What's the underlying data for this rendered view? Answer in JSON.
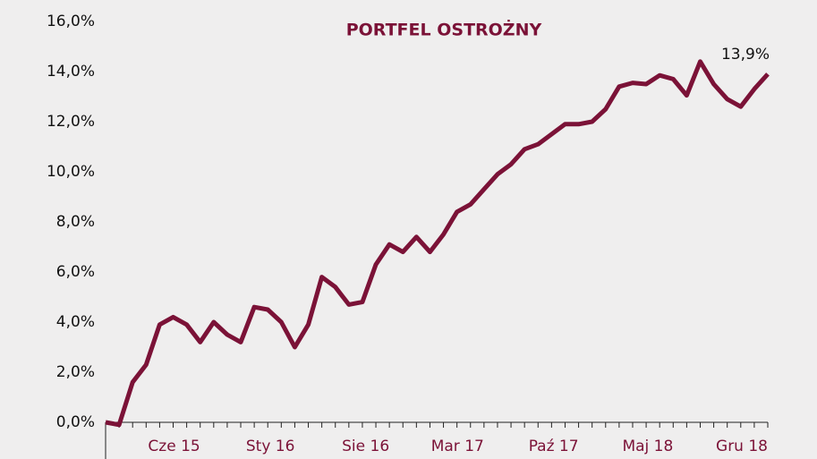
{
  "chart_data": {
    "type": "line",
    "title": "PORTFEL OSTROŻNY",
    "categories": [
      null,
      null,
      null,
      null,
      null,
      null,
      null,
      "Cze 15",
      null,
      null,
      null,
      null,
      null,
      null,
      "Sty 16",
      null,
      null,
      null,
      null,
      null,
      null,
      "Sie 16",
      null,
      null,
      null,
      null,
      null,
      null,
      "Mar 17",
      null,
      null,
      null,
      null,
      null,
      null,
      "Paź 17",
      null,
      null,
      null,
      null,
      null,
      null,
      "Maj 18",
      null,
      null,
      null,
      null,
      null,
      null,
      "Gru 18"
    ],
    "series": [
      {
        "color": "#7b1237",
        "values": [
          0.0,
          -0.1,
          1.6,
          2.3,
          3.9,
          4.2,
          3.9,
          3.2,
          4.0,
          3.5,
          3.2,
          4.6,
          4.5,
          4.0,
          3.0,
          3.9,
          5.8,
          5.4,
          4.7,
          4.8,
          6.3,
          7.1,
          6.8,
          7.4,
          6.8,
          7.5,
          8.4,
          8.7,
          9.3,
          9.9,
          10.3,
          10.9,
          11.1,
          11.5,
          11.9,
          11.9,
          12.0,
          12.5,
          13.4,
          13.55,
          13.5,
          13.85,
          13.7,
          13.05,
          14.4,
          13.5,
          12.9,
          12.6,
          13.3,
          13.9
        ],
        "value_labels": [
          null,
          null,
          null,
          null,
          null,
          null,
          null,
          null,
          null,
          null,
          null,
          null,
          null,
          null,
          null,
          null,
          null,
          null,
          null,
          null,
          null,
          null,
          null,
          null,
          null,
          null,
          null,
          null,
          null,
          null,
          null,
          null,
          null,
          null,
          null,
          null,
          null,
          null,
          null,
          null,
          null,
          null,
          null,
          null,
          null,
          null,
          null,
          null,
          null,
          "13,9%"
        ]
      }
    ],
    "ylim": [
      0,
      16
    ],
    "yticks": [
      {
        "value": 0,
        "label": "0,0%"
      },
      {
        "value": 2,
        "label": "2,0%"
      },
      {
        "value": 4,
        "label": "4,0%"
      },
      {
        "value": 6,
        "label": "6,0%"
      },
      {
        "value": 8,
        "label": "8,0%"
      },
      {
        "value": 10,
        "label": "10,0%"
      },
      {
        "value": 12,
        "label": "12,0%"
      },
      {
        "value": 14,
        "label": "14,0%"
      },
      {
        "value": 16,
        "label": "16,0%"
      }
    ],
    "grid": false
  }
}
